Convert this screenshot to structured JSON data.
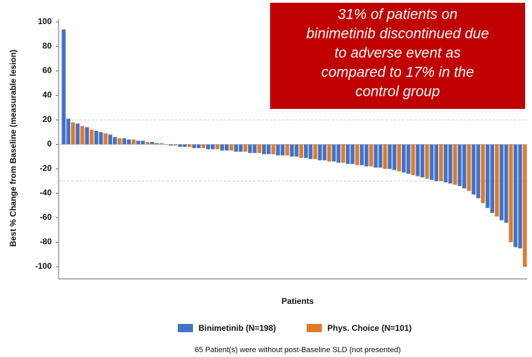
{
  "chart_data": {
    "type": "waterfall",
    "annotation": [
      "31% of patients on",
      "binimetinib discontinued due",
      "to adverse event as",
      "compared to 17% in the",
      "control group"
    ],
    "y_label": "Best % Change from Baseline (measurable lesion)",
    "x_label": "Patients",
    "footnote": "65 Patient(s) were without post-Baseline SLD (not presented)",
    "ylim": [
      -110,
      100
    ],
    "yticks": [
      100,
      80,
      60,
      40,
      20,
      0,
      -20,
      -40,
      -60,
      -80,
      -100
    ],
    "reference_lines": [
      20,
      -30
    ],
    "series": [
      {
        "name": "Binimetinib (N=198)",
        "color": "#4472c4",
        "values": [
          94,
          21,
          null,
          17,
          null,
          14,
          null,
          11,
          10,
          null,
          8,
          6,
          null,
          5,
          4,
          null,
          3,
          3,
          null,
          2,
          1,
          null,
          0,
          -1,
          null,
          -2,
          -2,
          null,
          -3,
          -3,
          null,
          -4,
          -4,
          null,
          -5,
          -5,
          null,
          -6,
          -6,
          null,
          -7,
          -7,
          null,
          -8,
          -8,
          null,
          -9,
          -9,
          null,
          -10,
          -10,
          null,
          -11,
          -12,
          null,
          -13,
          -13,
          null,
          -14,
          -15,
          null,
          -16,
          -16,
          null,
          -17,
          -18,
          null,
          -19,
          -19,
          null,
          -20,
          -21,
          null,
          -23,
          -24,
          null,
          -26,
          -27,
          null,
          -29,
          -30,
          null,
          -31,
          -32,
          null,
          -34,
          -36,
          null,
          -41,
          -44,
          null,
          -52,
          -56,
          null,
          -62,
          -64,
          null,
          -84,
          -85,
          null
        ]
      },
      {
        "name": "Phys. Choice (N=101)",
        "color": "#e07b2a",
        "values": [
          null,
          null,
          18,
          null,
          15,
          null,
          12,
          null,
          null,
          9,
          null,
          null,
          5,
          null,
          null,
          4,
          null,
          null,
          2,
          null,
          null,
          1,
          null,
          null,
          -1,
          null,
          null,
          -2,
          null,
          null,
          -3,
          null,
          null,
          -4,
          null,
          null,
          -5,
          null,
          null,
          -6,
          null,
          null,
          -7,
          null,
          null,
          -8,
          null,
          null,
          -9,
          null,
          null,
          -11,
          null,
          null,
          -12,
          null,
          null,
          -14,
          null,
          null,
          -15,
          null,
          null,
          -17,
          null,
          null,
          -18,
          null,
          null,
          -20,
          null,
          null,
          -22,
          null,
          null,
          -25,
          null,
          null,
          -28,
          null,
          null,
          -30,
          null,
          null,
          -33,
          null,
          null,
          -38,
          null,
          null,
          -48,
          null,
          null,
          -59,
          null,
          null,
          -80,
          null,
          null,
          -100
        ]
      }
    ]
  }
}
